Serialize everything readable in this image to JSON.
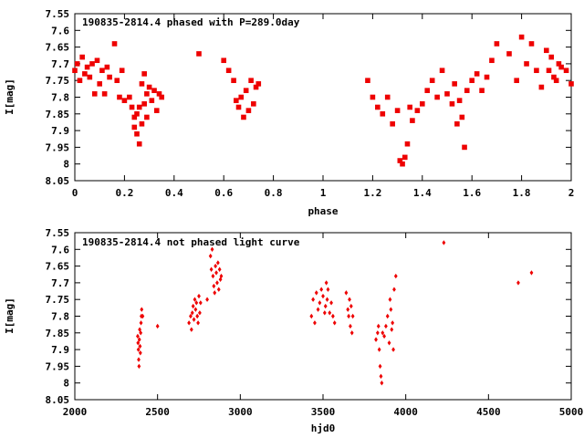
{
  "chart_data": [
    {
      "type": "scatter",
      "title": "190835-2814.4 phased with P=289.0day",
      "xlabel": "phase",
      "ylabel": "I[mag]",
      "xlim": [
        0,
        2
      ],
      "ylim": [
        7.55,
        8.05
      ],
      "y_inverted": true,
      "grid": false,
      "xticks": [
        "0",
        "0.2",
        "0.4",
        "0.6",
        "0.8",
        "1",
        "1.2",
        "1.4",
        "1.6",
        "1.8",
        "2"
      ],
      "yticks": [
        "7.55",
        "7.6",
        "7.65",
        "7.7",
        "7.75",
        "7.8",
        "7.85",
        "7.9",
        "7.95",
        "8",
        "8.05"
      ],
      "marker_color": "#ee0000",
      "series": [
        {
          "x": [
            0.0,
            0.01,
            0.02,
            0.03,
            0.04,
            0.05,
            0.06,
            0.07,
            0.08,
            0.09,
            0.1,
            0.11,
            0.12,
            0.13,
            0.14,
            0.16,
            0.17,
            0.18,
            0.19,
            0.2,
            0.22,
            0.23,
            0.24,
            0.24,
            0.25,
            0.25,
            0.26,
            0.26,
            0.27,
            0.27,
            0.28,
            0.28,
            0.29,
            0.29,
            0.3,
            0.31,
            0.32,
            0.33,
            0.34,
            0.35,
            0.5,
            0.6,
            0.62,
            0.64,
            0.65,
            0.66,
            0.67,
            0.68,
            0.69,
            0.7,
            0.71,
            0.72,
            0.73,
            0.74,
            1.18,
            1.2,
            1.22,
            1.24,
            1.26,
            1.28,
            1.3,
            1.31,
            1.32,
            1.33,
            1.34,
            1.35,
            1.36,
            1.38,
            1.4,
            1.42,
            1.44,
            1.46,
            1.48,
            1.5,
            1.52,
            1.53,
            1.54,
            1.55,
            1.56,
            1.57,
            1.58,
            1.6,
            1.62,
            1.64,
            1.66,
            1.68,
            1.7,
            1.75,
            1.78,
            1.8,
            1.82,
            1.84,
            1.86,
            1.88,
            1.9,
            1.91,
            1.92,
            1.93,
            1.94,
            1.95,
            1.96,
            1.98,
            2.0
          ],
          "y": [
            7.72,
            7.7,
            7.75,
            7.68,
            7.73,
            7.71,
            7.74,
            7.7,
            7.79,
            7.69,
            7.76,
            7.72,
            7.79,
            7.71,
            7.74,
            7.64,
            7.75,
            7.8,
            7.72,
            7.81,
            7.8,
            7.83,
            7.86,
            7.89,
            7.85,
            7.91,
            7.83,
            7.94,
            7.88,
            7.76,
            7.73,
            7.82,
            7.79,
            7.86,
            7.77,
            7.81,
            7.78,
            7.84,
            7.79,
            7.8,
            7.67,
            7.69,
            7.72,
            7.75,
            7.81,
            7.83,
            7.8,
            7.86,
            7.78,
            7.84,
            7.75,
            7.82,
            7.77,
            7.76,
            7.75,
            7.8,
            7.83,
            7.85,
            7.8,
            7.88,
            7.84,
            7.99,
            8.0,
            7.98,
            7.94,
            7.83,
            7.87,
            7.84,
            7.82,
            7.78,
            7.75,
            7.8,
            7.72,
            7.79,
            7.82,
            7.76,
            7.88,
            7.81,
            7.86,
            7.95,
            7.78,
            7.75,
            7.73,
            7.78,
            7.74,
            7.69,
            7.64,
            7.67,
            7.75,
            7.62,
            7.7,
            7.64,
            7.72,
            7.77,
            7.66,
            7.72,
            7.68,
            7.74,
            7.75,
            7.7,
            7.71,
            7.72,
            7.76
          ]
        }
      ]
    },
    {
      "type": "scatter",
      "title": "190835-2814.4 not phased light curve",
      "xlabel": "hjd0",
      "ylabel": "I[mag]",
      "xlim": [
        2000,
        5000
      ],
      "ylim": [
        7.55,
        8.05
      ],
      "y_inverted": true,
      "grid": false,
      "xticks": [
        "2000",
        "2500",
        "3000",
        "3500",
        "4000",
        "4500",
        "5000"
      ],
      "yticks": [
        "7.55",
        "7.6",
        "7.65",
        "7.7",
        "7.75",
        "7.8",
        "7.85",
        "7.9",
        "7.95",
        "8",
        "8.05"
      ],
      "marker_color": "#ee0000",
      "series": [
        {
          "x": [
            2380,
            2382,
            2384,
            2386,
            2388,
            2390,
            2392,
            2394,
            2396,
            2398,
            2400,
            2402,
            2404,
            2410,
            2500,
            2690,
            2700,
            2705,
            2710,
            2715,
            2720,
            2725,
            2730,
            2735,
            2740,
            2745,
            2750,
            2755,
            2760,
            2800,
            2820,
            2825,
            2830,
            2835,
            2840,
            2845,
            2850,
            2855,
            2860,
            2865,
            2870,
            2875,
            2880,
            2885,
            3430,
            3440,
            3450,
            3460,
            3470,
            3480,
            3490,
            3500,
            3510,
            3515,
            3520,
            3525,
            3530,
            3540,
            3550,
            3560,
            3570,
            3640,
            3650,
            3655,
            3660,
            3665,
            3670,
            3675,
            3680,
            3820,
            3830,
            3835,
            3840,
            3845,
            3850,
            3855,
            3860,
            3870,
            3880,
            3890,
            3900,
            3905,
            3910,
            3915,
            3920,
            3925,
            3930,
            3940,
            4230,
            4680,
            4760
          ],
          "y": [
            7.86,
            7.88,
            7.9,
            7.93,
            7.95,
            7.87,
            7.84,
            7.89,
            7.91,
            7.85,
            7.82,
            7.8,
            7.78,
            7.8,
            7.83,
            7.82,
            7.8,
            7.84,
            7.79,
            7.77,
            7.81,
            7.75,
            7.78,
            7.76,
            7.8,
            7.82,
            7.74,
            7.79,
            7.76,
            7.75,
            7.62,
            7.66,
            7.6,
            7.68,
            7.71,
            7.73,
            7.65,
            7.67,
            7.7,
            7.64,
            7.72,
            7.66,
            7.69,
            7.68,
            7.8,
            7.75,
            7.82,
            7.73,
            7.78,
            7.76,
            7.72,
            7.74,
            7.79,
            7.77,
            7.7,
            7.75,
            7.72,
            7.79,
            7.76,
            7.8,
            7.82,
            7.73,
            7.78,
            7.8,
            7.75,
            7.83,
            7.77,
            7.85,
            7.8,
            7.87,
            7.85,
            7.83,
            7.9,
            7.95,
            7.98,
            8.0,
            7.85,
            7.86,
            7.83,
            7.8,
            7.88,
            7.75,
            7.78,
            7.84,
            7.82,
            7.9,
            7.72,
            7.68,
            7.58,
            7.7,
            7.67
          ]
        }
      ]
    }
  ]
}
